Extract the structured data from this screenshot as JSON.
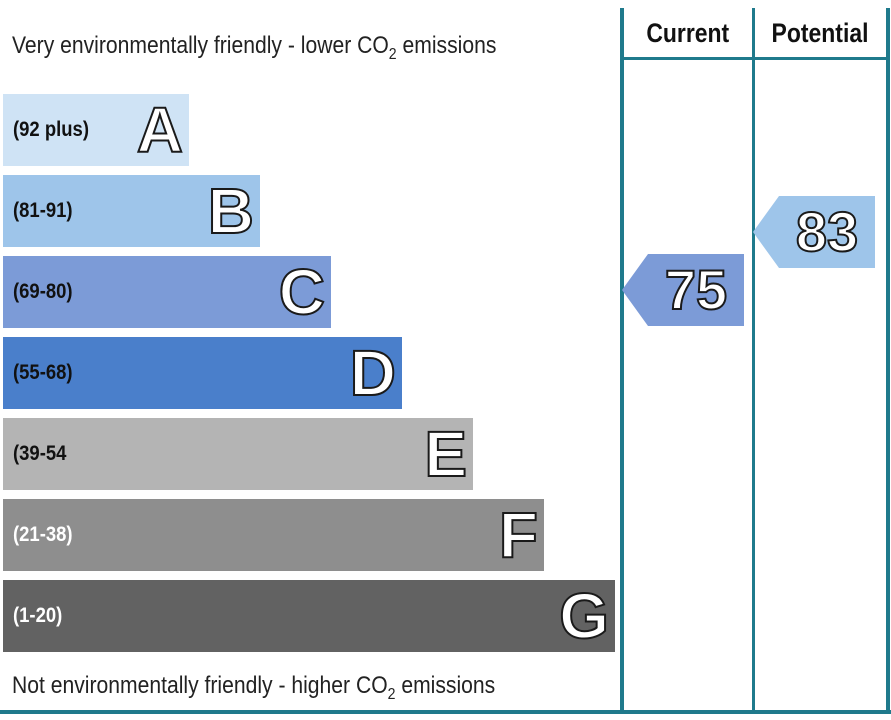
{
  "chart_data": {
    "type": "bar",
    "top_label": {
      "prefix": "Very environmentally friendly - lower CO",
      "sub": "2",
      "suffix": " emissions"
    },
    "bottom_label": {
      "prefix": "Not environmentally friendly - higher CO",
      "sub": "2",
      "suffix": " emissions"
    },
    "bands": [
      {
        "letter": "A",
        "range": "(92 plus)",
        "color": "#cfe3f5",
        "text_color": "#111111"
      },
      {
        "letter": "B",
        "range": "(81-91)",
        "color": "#9ec5ea",
        "text_color": "#111111"
      },
      {
        "letter": "C",
        "range": "(69-80)",
        "color": "#7c9bd7",
        "text_color": "#111111"
      },
      {
        "letter": "D",
        "range": "(55-68)",
        "color": "#4a7fcb",
        "text_color": "#111111"
      },
      {
        "letter": "E",
        "range": "(39-54",
        "color": "#b4b4b4",
        "text_color": "#111111"
      },
      {
        "letter": "F",
        "range": "(21-38)",
        "color": "#8e8e8e",
        "text_color": "#ffffff"
      },
      {
        "letter": "G",
        "range": "(1-20)",
        "color": "#626262",
        "text_color": "#ffffff"
      }
    ],
    "columns": [
      {
        "label": "Current",
        "value": "75",
        "band": "C",
        "color": "#7c9bd7"
      },
      {
        "label": "Potential",
        "value": "83",
        "band": "B",
        "color": "#9ec5ea"
      }
    ],
    "line_color": "#1f7a8c"
  }
}
